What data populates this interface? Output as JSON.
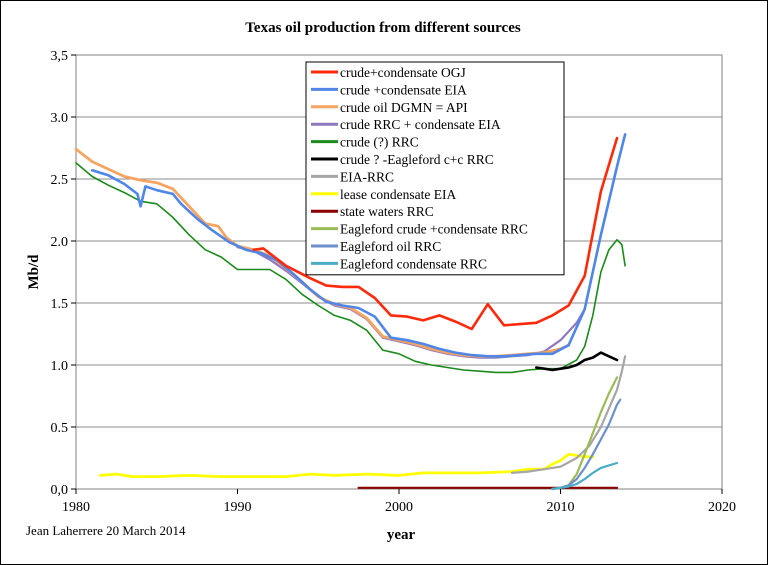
{
  "chart_data": {
    "type": "line",
    "title": "Texas oil production from different sources",
    "xlabel": "year",
    "ylabel": "Mb/d",
    "xlim": [
      1980,
      2020
    ],
    "ylim": [
      0,
      3.5
    ],
    "x_ticks": [
      "1980",
      "1990",
      "2000",
      "2010",
      "2020"
    ],
    "y_ticks": [
      "0,0",
      "0.5",
      "1.0",
      "1.5",
      "2.0",
      "2.5",
      "3.0",
      "3,5"
    ],
    "grid": "horizontal",
    "legend_position": "top-center",
    "credit": "Jean Laherrere 20 March 2014",
    "series": [
      {
        "name": "crude+condensate OGJ",
        "color": "#ff2a0a",
        "width": 2.6,
        "points": [
          [
            1991,
            1.93
          ],
          [
            1991.6,
            1.94
          ],
          [
            1993,
            1.8
          ],
          [
            1994.5,
            1.7
          ],
          [
            1995.5,
            1.64
          ],
          [
            1996.5,
            1.63
          ],
          [
            1997.5,
            1.63
          ],
          [
            1998.5,
            1.54
          ],
          [
            1999.5,
            1.4
          ],
          [
            2000.5,
            1.39
          ],
          [
            2001.5,
            1.36
          ],
          [
            2002.5,
            1.4
          ],
          [
            2003.5,
            1.35
          ],
          [
            2004.5,
            1.29
          ],
          [
            2005.5,
            1.49
          ],
          [
            2006.5,
            1.32
          ],
          [
            2007.5,
            1.33
          ],
          [
            2008.5,
            1.34
          ],
          [
            2009.5,
            1.4
          ],
          [
            2010.5,
            1.48
          ],
          [
            2011.5,
            1.72
          ],
          [
            2012.5,
            2.4
          ],
          [
            2013.5,
            2.83
          ]
        ]
      },
      {
        "name": "crude +condensate EIA",
        "color": "#4f86e8",
        "width": 2.6,
        "points": [
          [
            1981,
            2.57
          ],
          [
            1982,
            2.53
          ],
          [
            1983,
            2.46
          ],
          [
            1983.8,
            2.38
          ],
          [
            1984,
            2.28
          ],
          [
            1984.3,
            2.44
          ],
          [
            1985,
            2.41
          ],
          [
            1986,
            2.38
          ],
          [
            1986.5,
            2.3
          ],
          [
            1987.5,
            2.18
          ],
          [
            1988.5,
            2.08
          ],
          [
            1989.5,
            1.99
          ],
          [
            1990.5,
            1.93
          ],
          [
            1991.5,
            1.9
          ],
          [
            1992.5,
            1.84
          ],
          [
            1993.5,
            1.73
          ],
          [
            1994.5,
            1.61
          ],
          [
            1995.5,
            1.51
          ],
          [
            1996.5,
            1.48
          ],
          [
            1997.5,
            1.46
          ],
          [
            1998.5,
            1.39
          ],
          [
            1999.5,
            1.22
          ],
          [
            2000.5,
            1.2
          ],
          [
            2001.5,
            1.17
          ],
          [
            2002.5,
            1.13
          ],
          [
            2003.5,
            1.1
          ],
          [
            2004.5,
            1.08
          ],
          [
            2005.5,
            1.07
          ],
          [
            2006.5,
            1.07
          ],
          [
            2007.5,
            1.08
          ],
          [
            2008.5,
            1.09
          ],
          [
            2009.5,
            1.09
          ],
          [
            2010.5,
            1.16
          ],
          [
            2011.5,
            1.45
          ],
          [
            2012.5,
            2.05
          ],
          [
            2013.5,
            2.6
          ],
          [
            2014,
            2.86
          ]
        ]
      },
      {
        "name": "crude oil DGMN = API",
        "color": "#f5a461",
        "width": 2.8,
        "points": [
          [
            1980,
            2.74
          ],
          [
            1981,
            2.64
          ],
          [
            1982,
            2.58
          ],
          [
            1983,
            2.52
          ],
          [
            1984,
            2.49
          ],
          [
            1985,
            2.47
          ],
          [
            1986,
            2.42
          ],
          [
            1987,
            2.28
          ],
          [
            1988,
            2.14
          ],
          [
            1988.8,
            2.12
          ],
          [
            1989.3,
            2.03
          ],
          [
            1990,
            1.96
          ],
          [
            1991,
            1.93
          ],
          [
            1992,
            1.88
          ],
          [
            1993,
            1.78
          ],
          [
            1994,
            1.67
          ],
          [
            1995,
            1.55
          ],
          [
            1996,
            1.49
          ],
          [
            1997,
            1.46
          ],
          [
            1998,
            1.38
          ],
          [
            1999,
            1.23
          ],
          [
            2000,
            1.2
          ],
          [
            2001,
            1.17
          ],
          [
            2002,
            1.13
          ],
          [
            2003,
            1.1
          ],
          [
            2004,
            1.08
          ],
          [
            2005,
            1.07
          ],
          [
            2006,
            1.07
          ],
          [
            2007,
            1.08
          ],
          [
            2008,
            1.09
          ],
          [
            2009,
            1.1
          ],
          [
            2010,
            1.13
          ],
          [
            2010.5,
            1.16
          ]
        ]
      },
      {
        "name": "crude RRC + condensate EIA",
        "color": "#8f78c0",
        "width": 2.2,
        "points": [
          [
            1990,
            1.95
          ],
          [
            1991,
            1.92
          ],
          [
            1992,
            1.85
          ],
          [
            1993,
            1.76
          ],
          [
            1994,
            1.66
          ],
          [
            1995,
            1.55
          ],
          [
            1996,
            1.48
          ],
          [
            1997,
            1.45
          ],
          [
            1998,
            1.37
          ],
          [
            1999,
            1.22
          ],
          [
            2000,
            1.19
          ],
          [
            2001,
            1.16
          ],
          [
            2002,
            1.12
          ],
          [
            2003,
            1.09
          ],
          [
            2004,
            1.07
          ],
          [
            2005,
            1.06
          ],
          [
            2006,
            1.06
          ],
          [
            2007,
            1.07
          ],
          [
            2008,
            1.08
          ],
          [
            2009,
            1.11
          ],
          [
            2010,
            1.2
          ],
          [
            2011,
            1.34
          ],
          [
            2011.5,
            1.45
          ]
        ]
      },
      {
        "name": "crude (?) RRC",
        "color": "#1a8a1a",
        "width": 1.6,
        "points": [
          [
            1980,
            2.63
          ],
          [
            1981,
            2.52
          ],
          [
            1982,
            2.45
          ],
          [
            1983,
            2.39
          ],
          [
            1984,
            2.32
          ],
          [
            1985,
            2.3
          ],
          [
            1986,
            2.19
          ],
          [
            1987,
            2.05
          ],
          [
            1988,
            1.93
          ],
          [
            1989,
            1.87
          ],
          [
            1990,
            1.77
          ],
          [
            1991,
            1.77
          ],
          [
            1992,
            1.77
          ],
          [
            1993,
            1.69
          ],
          [
            1994,
            1.57
          ],
          [
            1995,
            1.48
          ],
          [
            1996,
            1.4
          ],
          [
            1997,
            1.36
          ],
          [
            1998,
            1.28
          ],
          [
            1999,
            1.12
          ],
          [
            2000,
            1.09
          ],
          [
            2001,
            1.03
          ],
          [
            2002,
            1.0
          ],
          [
            2003,
            0.98
          ],
          [
            2004,
            0.96
          ],
          [
            2005,
            0.95
          ],
          [
            2006,
            0.94
          ],
          [
            2007,
            0.94
          ],
          [
            2008,
            0.96
          ],
          [
            2009,
            0.97
          ],
          [
            2010,
            0.97
          ],
          [
            2011,
            1.04
          ],
          [
            2011.5,
            1.15
          ],
          [
            2012,
            1.4
          ],
          [
            2012.5,
            1.75
          ],
          [
            2013,
            1.93
          ],
          [
            2013.5,
            2.01
          ],
          [
            2013.8,
            1.97
          ],
          [
            2014,
            1.8
          ]
        ]
      },
      {
        "name": "crude ? -Eagleford c+c RRC",
        "color": "#000000",
        "width": 2.6,
        "points": [
          [
            2008.5,
            0.98
          ],
          [
            2009,
            0.97
          ],
          [
            2009.5,
            0.96
          ],
          [
            2010,
            0.97
          ],
          [
            2010.5,
            0.98
          ],
          [
            2011,
            1.0
          ],
          [
            2011.5,
            1.04
          ],
          [
            2012,
            1.06
          ],
          [
            2012.5,
            1.1
          ],
          [
            2013,
            1.07
          ],
          [
            2013.5,
            1.04
          ]
        ]
      },
      {
        "name": "EIA-RRC",
        "color": "#a6a6a6",
        "width": 2.2,
        "points": [
          [
            2007,
            0.13
          ],
          [
            2008,
            0.14
          ],
          [
            2009,
            0.16
          ],
          [
            2010,
            0.18
          ],
          [
            2011,
            0.25
          ],
          [
            2011.8,
            0.35
          ],
          [
            2012.5,
            0.5
          ],
          [
            2013,
            0.65
          ],
          [
            2013.5,
            0.8
          ],
          [
            2013.8,
            0.95
          ],
          [
            2014,
            1.07
          ]
        ]
      },
      {
        "name": "lease condensate EIA",
        "color": "#ffff00",
        "width": 2.8,
        "points": [
          [
            1981.5,
            0.11
          ],
          [
            1982.5,
            0.12
          ],
          [
            1983.5,
            0.1
          ],
          [
            1985,
            0.1
          ],
          [
            1987,
            0.11
          ],
          [
            1989,
            0.1
          ],
          [
            1991,
            0.1
          ],
          [
            1993,
            0.1
          ],
          [
            1994.5,
            0.12
          ],
          [
            1996,
            0.11
          ],
          [
            1998,
            0.12
          ],
          [
            2000,
            0.11
          ],
          [
            2001.5,
            0.13
          ],
          [
            2003,
            0.13
          ],
          [
            2005,
            0.13
          ],
          [
            2007,
            0.14
          ],
          [
            2008,
            0.16
          ],
          [
            2009,
            0.16
          ],
          [
            2009.5,
            0.2
          ],
          [
            2010,
            0.23
          ],
          [
            2010.5,
            0.28
          ],
          [
            2011.5,
            0.26
          ],
          [
            2012,
            0.26
          ]
        ]
      },
      {
        "name": "state waters RRC",
        "color": "#8b0000",
        "width": 2.2,
        "points": [
          [
            1997.5,
            0.01
          ],
          [
            2000,
            0.01
          ],
          [
            2005,
            0.01
          ],
          [
            2010,
            0.01
          ],
          [
            2013.5,
            0.01
          ]
        ]
      },
      {
        "name": "Eagleford crude +condensate RRC",
        "color": "#9bbb59",
        "width": 2.2,
        "points": [
          [
            2009.5,
            0.0
          ],
          [
            2010,
            0.01
          ],
          [
            2010.5,
            0.03
          ],
          [
            2011,
            0.12
          ],
          [
            2011.5,
            0.28
          ],
          [
            2012,
            0.45
          ],
          [
            2012.5,
            0.62
          ],
          [
            2013,
            0.77
          ],
          [
            2013.5,
            0.9
          ]
        ]
      },
      {
        "name": "Eagleford oil RRC",
        "color": "#6d8fcc",
        "width": 2.2,
        "points": [
          [
            2009.5,
            0.0
          ],
          [
            2010,
            0.01
          ],
          [
            2010.5,
            0.03
          ],
          [
            2011,
            0.08
          ],
          [
            2011.5,
            0.17
          ],
          [
            2012,
            0.28
          ],
          [
            2012.5,
            0.4
          ],
          [
            2013,
            0.52
          ],
          [
            2013.5,
            0.68
          ],
          [
            2013.7,
            0.72
          ]
        ]
      },
      {
        "name": "Eagleford condensate RRC",
        "color": "#4bacc6",
        "width": 2.2,
        "points": [
          [
            2009.5,
            0.0
          ],
          [
            2010,
            0.01
          ],
          [
            2010.5,
            0.02
          ],
          [
            2011,
            0.04
          ],
          [
            2011.5,
            0.08
          ],
          [
            2012,
            0.13
          ],
          [
            2012.5,
            0.17
          ],
          [
            2013,
            0.19
          ],
          [
            2013.5,
            0.21
          ]
        ]
      }
    ]
  }
}
